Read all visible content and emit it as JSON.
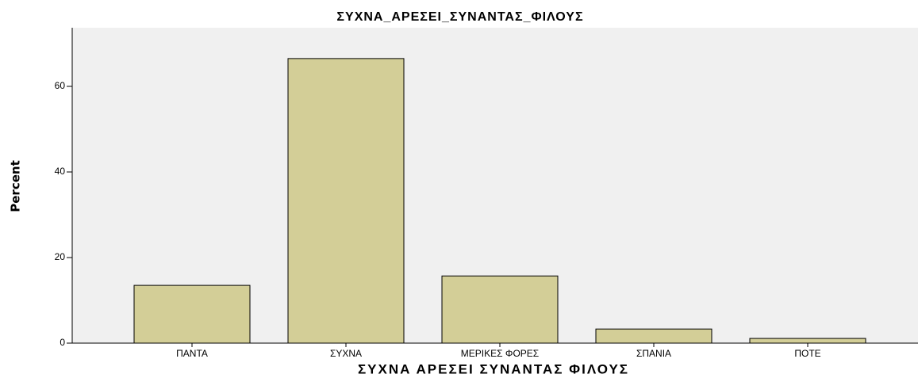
{
  "chart_data": {
    "type": "bar",
    "title": "ΣΥΧΝΑ_ΑΡΕΣΕΙ_ΣΥΝΑΝΤΑΣ_ΦΙΛΟΥΣ",
    "x_label": "ΣΥΧΝΑ ΑΡΕΣΕΙ ΣΥΝΑΝΤΑΣ ΦΙΛΟΥΣ",
    "y_label": "Percent",
    "categories": [
      "ΠΑΝΤΑ",
      "ΣΥΧΝΑ",
      "ΜΕΡΙΚΕΣ ΦΟΡΕΣ",
      "ΣΠΑΝΙΑ",
      "ΠΟΤΕ"
    ],
    "values": [
      13.5,
      66.5,
      15.7,
      3.3,
      1.1
    ],
    "color": "#d3ce97",
    "ylim": [
      0,
      73.7
    ],
    "yticks": [
      0,
      20,
      40,
      60
    ],
    "grid": false
  }
}
